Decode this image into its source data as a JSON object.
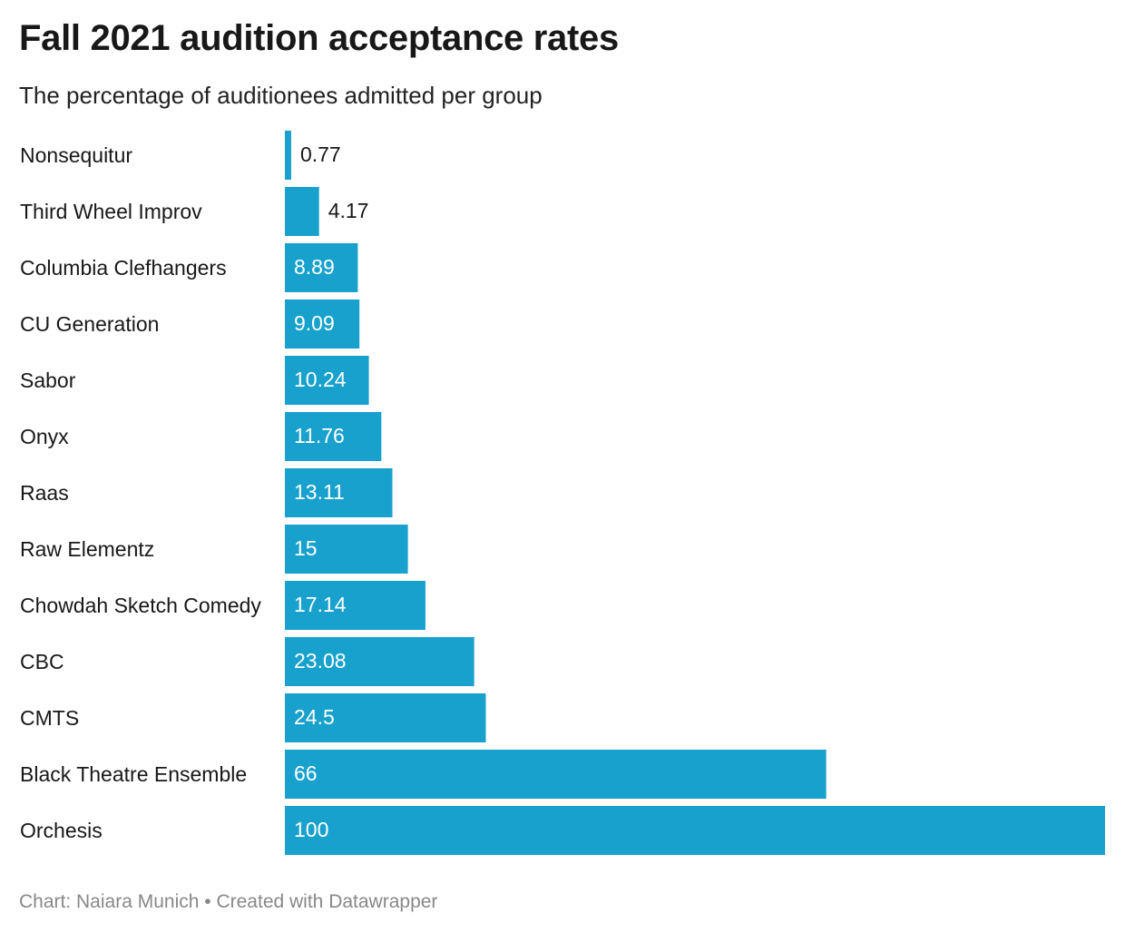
{
  "chart_data": {
    "type": "bar",
    "orientation": "horizontal",
    "title": "Fall 2021 audition acceptance rates",
    "subtitle": "The percentage of auditionees admitted per group",
    "categories": [
      "Nonsequitur",
      "Third Wheel Improv",
      "Columbia Clefhangers",
      "CU Generation",
      "Sabor",
      "Onyx",
      "Raas",
      "Raw Elementz",
      "Chowdah Sketch Comedy",
      "CBC",
      "CMTS",
      "Black Theatre Ensemble",
      "Orchesis"
    ],
    "values": [
      0.77,
      4.17,
      8.89,
      9.09,
      10.24,
      11.76,
      13.11,
      15,
      17.14,
      23.08,
      24.5,
      66,
      100
    ],
    "value_labels": [
      "0.77",
      "4.17",
      "8.89",
      "9.09",
      "10.24",
      "11.76",
      "13.11",
      "15",
      "17.14",
      "23.08",
      "24.5",
      "66",
      "100"
    ],
    "xlim": [
      0,
      100
    ],
    "grid": false,
    "legend": "none",
    "bar_color": "#18a1cd"
  },
  "footer": {
    "source": "Chart: Naiara Munich",
    "separator": "•",
    "credit": "Created with Datawrapper"
  }
}
